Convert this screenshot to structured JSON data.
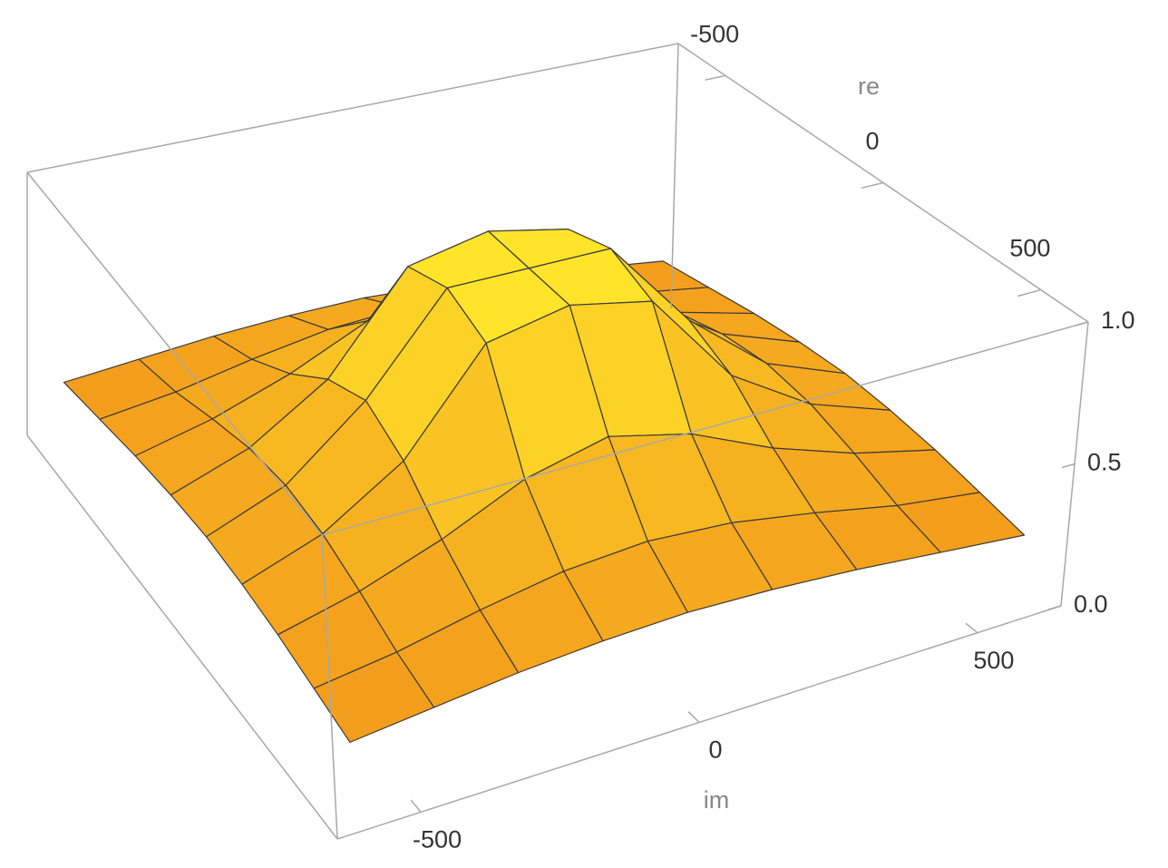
{
  "chart_data": {
    "type": "surface",
    "xlabel": "im",
    "ylabel": "re",
    "x": [
      -600,
      -450,
      -300,
      -150,
      0,
      150,
      300,
      450,
      600
    ],
    "y": [
      -600,
      -450,
      -300,
      -150,
      0,
      150,
      300,
      450,
      600
    ],
    "z": [
      [
        0.24,
        0.27,
        0.3,
        0.32,
        0.33,
        0.32,
        0.3,
        0.27,
        0.24
      ],
      [
        0.27,
        0.31,
        0.37,
        0.42,
        0.44,
        0.42,
        0.37,
        0.31,
        0.27
      ],
      [
        0.3,
        0.37,
        0.47,
        0.6,
        0.67,
        0.6,
        0.47,
        0.37,
        0.3
      ],
      [
        0.32,
        0.42,
        0.6,
        0.94,
        1,
        0.94,
        0.6,
        0.42,
        0.32
      ],
      [
        0.33,
        0.44,
        0.67,
        1,
        1,
        1,
        0.67,
        0.44,
        0.33
      ],
      [
        0.32,
        0.42,
        0.6,
        0.94,
        1,
        0.94,
        0.6,
        0.42,
        0.32
      ],
      [
        0.3,
        0.37,
        0.47,
        0.6,
        0.67,
        0.6,
        0.47,
        0.37,
        0.3
      ],
      [
        0.27,
        0.31,
        0.37,
        0.42,
        0.44,
        0.42,
        0.37,
        0.31,
        0.27
      ],
      [
        0.24,
        0.27,
        0.3,
        0.32,
        0.33,
        0.32,
        0.3,
        0.27,
        0.24
      ]
    ],
    "xlim": [
      -650,
      650
    ],
    "ylim": [
      -650,
      650
    ],
    "zlim": [
      0,
      1
    ],
    "xticks": [
      -500,
      0,
      500
    ],
    "yticks": [
      -500,
      0,
      500
    ],
    "zticks": [
      {
        "value": 0,
        "label": "0.0"
      },
      0.5,
      {
        "value": 1,
        "label": "1.0"
      }
    ],
    "colors": [
      "#ef8418",
      "#ffe52a"
    ]
  }
}
